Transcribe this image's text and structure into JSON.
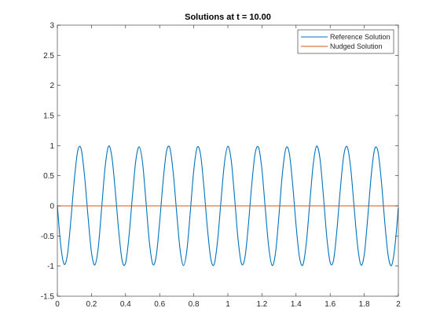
{
  "chart_data": {
    "type": "line",
    "title": "Solutions at t = 10.00",
    "xlabel": "",
    "ylabel": "",
    "xlim": [
      0,
      2
    ],
    "ylim": [
      -1.5,
      3
    ],
    "xticks": [
      0,
      0.2,
      0.4,
      0.6,
      0.8,
      1,
      1.2,
      1.4,
      1.6,
      1.8,
      2
    ],
    "xtick_labels": [
      "0",
      "0.2",
      "0.4",
      "0.6",
      "0.8",
      "1",
      "1.2",
      "1.4",
      "1.6",
      "1.8",
      "2"
    ],
    "yticks": [
      -1.5,
      -1,
      -0.5,
      0,
      0.5,
      1,
      1.5,
      2,
      2.5,
      3
    ],
    "ytick_labels": [
      "-1.5",
      "-1",
      "-0.5",
      "0",
      "0.5",
      "1",
      "1.5",
      "2",
      "2.5",
      "3"
    ],
    "grid": false,
    "legend_position": "top-right",
    "series": [
      {
        "name": "Reference Solution",
        "color": "#0072BD",
        "points": [
          [
            0,
            0
          ],
          [
            0.02,
            -0.66
          ],
          [
            0.04,
            -0.97
          ],
          [
            0.06,
            -0.79
          ],
          [
            0.08,
            -0.21
          ],
          [
            0.1,
            0.45
          ],
          [
            0.12,
            0.92
          ],
          [
            0.14,
            0.94
          ],
          [
            0.16,
            0.48
          ],
          [
            0.18,
            -0.18
          ],
          [
            0.2,
            -0.77
          ],
          [
            0.22,
            -0.98
          ],
          [
            0.24,
            -0.69
          ],
          [
            0.26,
            -0.03
          ],
          [
            0.28,
            0.64
          ],
          [
            0.3,
            0.99
          ],
          [
            0.32,
            0.81
          ],
          [
            0.34,
            0.24
          ],
          [
            0.36,
            -0.42
          ],
          [
            0.38,
            -0.91
          ],
          [
            0.4,
            -0.95
          ],
          [
            0.42,
            -0.51
          ],
          [
            0.44,
            0.15
          ],
          [
            0.46,
            0.75
          ],
          [
            0.48,
            0.98
          ],
          [
            0.5,
            0.71
          ],
          [
            0.52,
            0.06
          ],
          [
            0.54,
            -0.61
          ],
          [
            0.56,
            -0.97
          ],
          [
            0.58,
            -0.83
          ],
          [
            0.6,
            -0.27
          ],
          [
            0.62,
            0.4
          ],
          [
            0.64,
            0.9
          ],
          [
            0.66,
            0.96
          ],
          [
            0.68,
            0.54
          ],
          [
            0.7,
            -0.12
          ],
          [
            0.72,
            -0.73
          ],
          [
            0.74,
            -0.99
          ],
          [
            0.76,
            -0.73
          ],
          [
            0.78,
            -0.09
          ],
          [
            0.8,
            0.59
          ],
          [
            0.82,
            0.97
          ],
          [
            0.84,
            0.85
          ],
          [
            0.86,
            0.3
          ],
          [
            0.88,
            -0.37
          ],
          [
            0.9,
            -0.88
          ],
          [
            0.92,
            -0.97
          ],
          [
            0.94,
            -0.57
          ],
          [
            0.96,
            0.09
          ],
          [
            0.98,
            0.71
          ],
          [
            1,
            0.99
          ],
          [
            1.02,
            0.75
          ],
          [
            1.04,
            0.12
          ],
          [
            1.06,
            -0.56
          ],
          [
            1.08,
            -0.96
          ],
          [
            1.1,
            -0.86
          ],
          [
            1.12,
            -0.33
          ],
          [
            1.14,
            0.35
          ],
          [
            1.16,
            0.87
          ],
          [
            1.18,
            0.97
          ],
          [
            1.2,
            0.6
          ],
          [
            1.22,
            -0.06
          ],
          [
            1.24,
            -0.69
          ],
          [
            1.26,
            -0.99
          ],
          [
            1.28,
            -0.77
          ],
          [
            1.3,
            -0.15
          ],
          [
            1.32,
            0.54
          ],
          [
            1.34,
            0.95
          ],
          [
            1.36,
            0.88
          ],
          [
            1.38,
            0.36
          ],
          [
            1.4,
            -0.32
          ],
          [
            1.42,
            -0.85
          ],
          [
            1.44,
            -0.98
          ],
          [
            1.46,
            -0.62
          ],
          [
            1.48,
            0.03
          ],
          [
            1.5,
            0.67
          ],
          [
            1.52,
            0.99
          ],
          [
            1.54,
            0.79
          ],
          [
            1.56,
            0.18
          ],
          [
            1.58,
            -0.51
          ],
          [
            1.6,
            -0.94
          ],
          [
            1.62,
            -0.9
          ],
          [
            1.64,
            -0.39
          ],
          [
            1.66,
            0.29
          ],
          [
            1.68,
            0.84
          ],
          [
            1.7,
            0.98
          ],
          [
            1.72,
            0.64
          ],
          [
            1.74,
            0
          ],
          [
            1.76,
            -0.64
          ],
          [
            1.78,
            -0.98
          ],
          [
            1.8,
            -0.81
          ],
          [
            1.82,
            -0.21
          ],
          [
            1.84,
            0.48
          ],
          [
            1.86,
            0.93
          ],
          [
            1.88,
            0.91
          ],
          [
            1.9,
            0.42
          ],
          [
            1.92,
            -0.26
          ],
          [
            1.94,
            -0.82
          ],
          [
            1.96,
            -0.99
          ],
          [
            1.98,
            -0.67
          ],
          [
            2,
            -0.03
          ]
        ]
      },
      {
        "name": "Nudged Solution",
        "color": "#D95319",
        "points": [
          [
            0,
            0
          ],
          [
            2,
            0
          ]
        ]
      }
    ]
  }
}
